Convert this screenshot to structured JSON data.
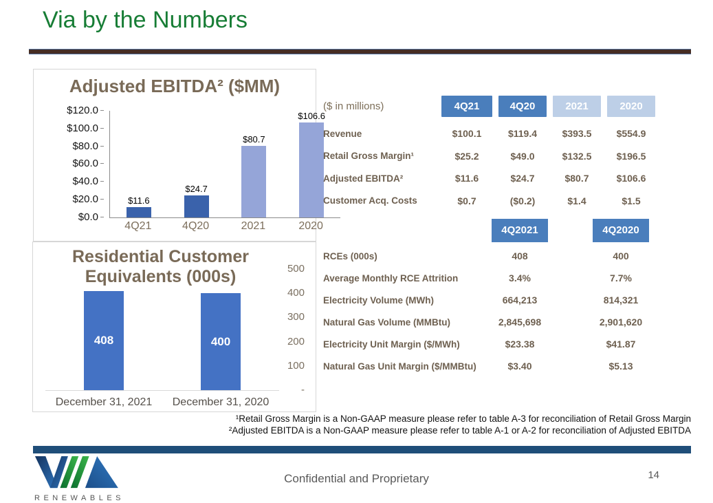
{
  "slide": {
    "title": "Via by the Numbers",
    "page_number": "14",
    "footer_text": "Confidential and Proprietary",
    "logo_subtext": "RENEWABLES"
  },
  "chart_data": [
    {
      "type": "bar",
      "title": "Adjusted EBITDA² ($MM)",
      "categories": [
        "4Q21",
        "4Q20",
        "2021",
        "2020"
      ],
      "values": [
        11.6,
        24.7,
        80.7,
        106.6
      ],
      "labels": [
        "$11.6",
        "$24.7",
        "$80.7",
        "$106.6"
      ],
      "bar_colors": [
        "#3a62ab",
        "#3a62ab",
        "#95a5d8",
        "#95a5d8"
      ],
      "ylim": [
        0,
        120
      ],
      "yticks": [
        "$120.0",
        "$100.0",
        "$80.0",
        "$60.0",
        "$40.0",
        "$20.0",
        "$0.0"
      ],
      "legend": "none",
      "grid": false
    },
    {
      "type": "bar",
      "title": "Residential Customer Equivalents (000s)",
      "categories": [
        "December 31, 2021",
        "December 31, 2020"
      ],
      "values": [
        408,
        400
      ],
      "labels": [
        "408",
        "400"
      ],
      "bar_color": "#4472c4",
      "ylim": [
        0,
        500
      ],
      "yticks": [
        "500",
        "400",
        "300",
        "200",
        "100",
        "-"
      ],
      "axis_side": "right",
      "legend": "none",
      "grid": false
    }
  ],
  "table1": {
    "intro": "($ in millions)",
    "headers": [
      "4Q21",
      "4Q20",
      "2021",
      "2020"
    ],
    "header_colors": [
      "#4a7ebc",
      "#4a7ebc",
      "#bdcfe7",
      "#bdcfe7"
    ],
    "rows": [
      {
        "label": "Revenue",
        "values": [
          "$100.1",
          "$119.4",
          "$393.5",
          "$554.9"
        ]
      },
      {
        "label": "Retail Gross Margin¹",
        "values": [
          "$25.2",
          "$49.0",
          "$132.5",
          "$196.5"
        ]
      },
      {
        "label": "Adjusted EBITDA²",
        "values": [
          "$11.6",
          "$24.7",
          "$80.7",
          "$106.6"
        ]
      },
      {
        "label": "Customer Acq. Costs",
        "values": [
          "$0.7",
          "($0.2)",
          "$1.4",
          "$1.5"
        ]
      }
    ]
  },
  "table2": {
    "headers": [
      "4Q2021",
      "4Q2020"
    ],
    "header_colors": [
      "#4a7ebc",
      "#4a7ebc"
    ],
    "rows": [
      {
        "label": "RCEs (000s)",
        "values": [
          "408",
          "400"
        ]
      },
      {
        "label": "Average Monthly RCE Attrition",
        "values": [
          "3.4%",
          "7.7%"
        ]
      },
      {
        "label": "Electricity Volume (MWh)",
        "values": [
          "664,213",
          "814,321"
        ]
      },
      {
        "label": "Natural Gas Volume (MMBtu)",
        "values": [
          "2,845,698",
          "2,901,620"
        ]
      },
      {
        "label": "Electricity Unit Margin ($/MWh)",
        "values": [
          "$23.38",
          "$41.87"
        ]
      },
      {
        "label": "Natural Gas Unit Margin ($/MMBtu)",
        "values": [
          "$3.40",
          "$5.13"
        ]
      }
    ]
  },
  "footnotes": [
    "¹Retail Gross Margin is a Non-GAAP measure please refer to table A-3 for reconciliation of Retail Gross Margin",
    "²Adjusted EBITDA is a Non-GAAP measure please refer to table A-1 or A-2 for reconciliation of Adjusted EBITDA"
  ]
}
